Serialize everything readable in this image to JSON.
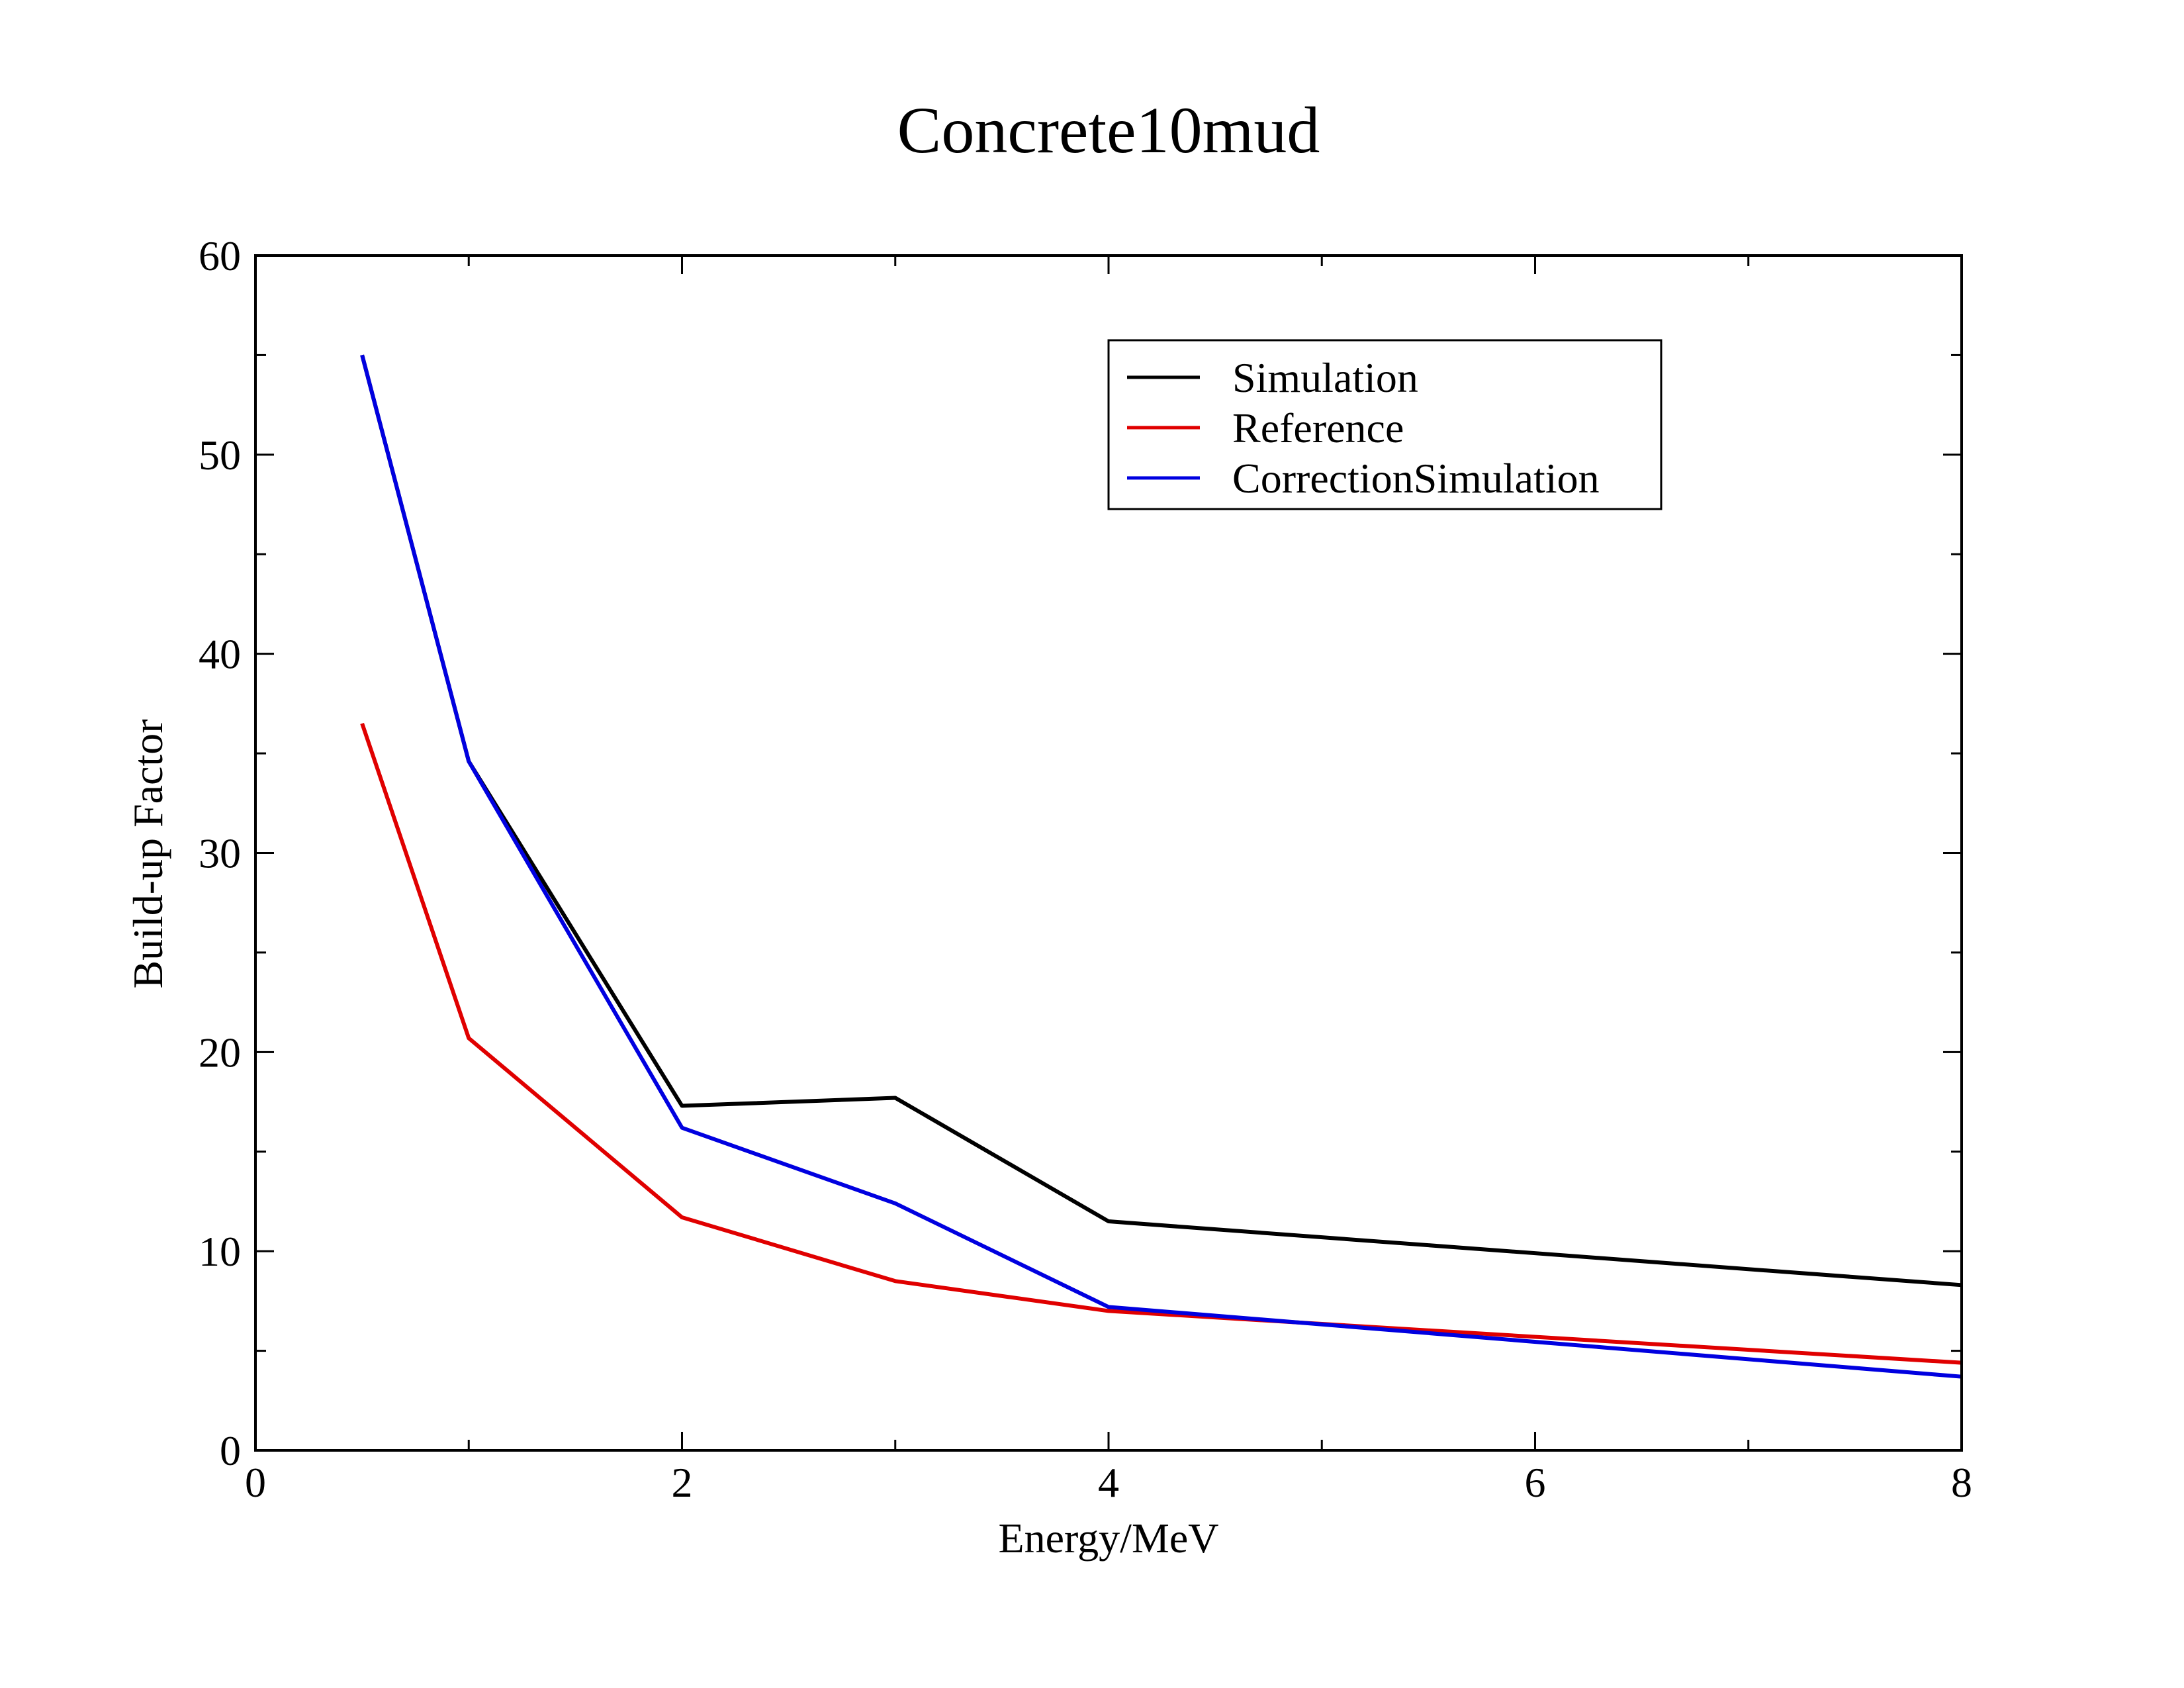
{
  "chart_data": {
    "type": "line",
    "title": "Concrete10mud",
    "xlabel": "Energy/MeV",
    "ylabel": "Build-up Factor",
    "xlim": [
      0,
      8
    ],
    "ylim": [
      0,
      60
    ],
    "x_ticks": [
      "0",
      "2",
      "4",
      "6",
      "8"
    ],
    "y_ticks": [
      "0",
      "10",
      "20",
      "30",
      "40",
      "50",
      "60"
    ],
    "grid": false,
    "legend_position": "top-right",
    "x": [
      0.5,
      1,
      2,
      3,
      4,
      8
    ],
    "series": [
      {
        "name": "Simulation",
        "color": "#000000",
        "values": [
          55.0,
          34.6,
          17.3,
          17.7,
          11.5,
          8.3
        ]
      },
      {
        "name": "Reference",
        "color": "#e00000",
        "values": [
          36.5,
          20.7,
          11.7,
          8.5,
          7.0,
          4.4
        ]
      },
      {
        "name": "CorrectionSimulation",
        "color": "#0000e0",
        "values": [
          55.0,
          34.6,
          16.2,
          12.4,
          7.2,
          3.7
        ]
      }
    ]
  }
}
